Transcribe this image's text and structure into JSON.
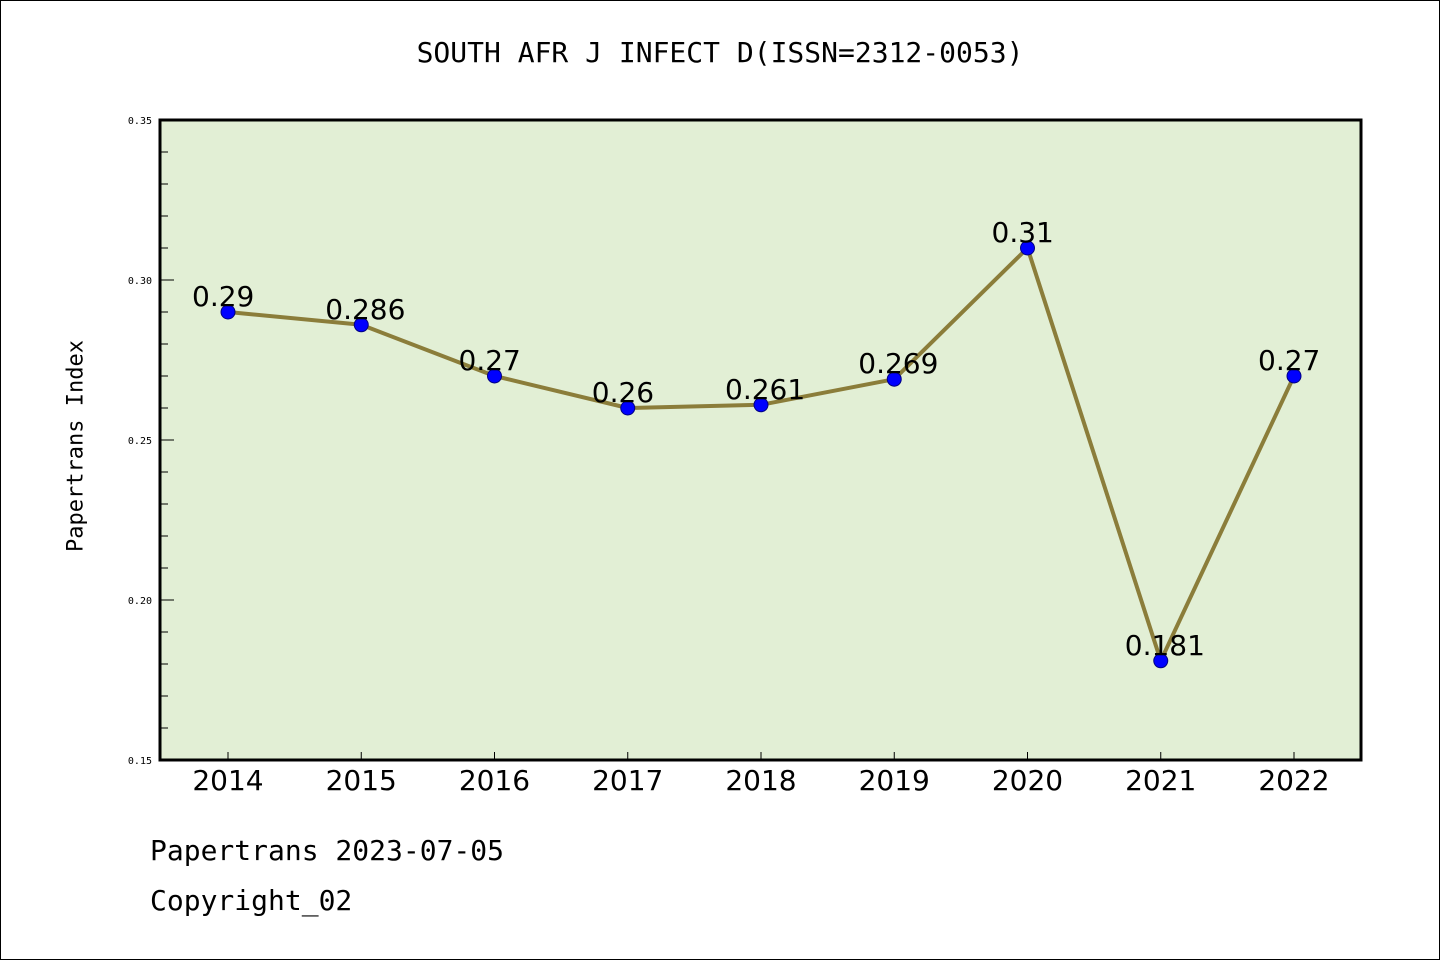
{
  "chart_data": {
    "type": "line",
    "title": "SOUTH AFR J INFECT D(ISSN=2312-0053)",
    "ylabel": "Papertrans Index",
    "xlabel": "",
    "categories": [
      "2014",
      "2015",
      "2016",
      "2017",
      "2018",
      "2019",
      "2020",
      "2021",
      "2022"
    ],
    "series": [
      {
        "values": [
          0.29,
          0.286,
          0.27,
          0.26,
          0.261,
          0.269,
          0.31,
          0.181,
          0.27
        ],
        "labels": [
          "0.29",
          "0.286",
          "0.27",
          "0.26",
          "0.261",
          "0.269",
          "0.31",
          "0.181",
          "0.27"
        ]
      }
    ],
    "ylim": [
      0.15,
      0.35
    ],
    "yticks": [
      0.15,
      0.2,
      0.25,
      0.3,
      0.35
    ],
    "ytick_labels": [
      "0.15",
      "0.20",
      "0.25",
      "0.30",
      "0.35"
    ],
    "legend": "none",
    "grid": false,
    "colors": {
      "plot_background": "#e2efd5",
      "line": "#8b7d3a",
      "marker": "#0000ff",
      "marker_edge": "#000080"
    }
  },
  "footer": {
    "line1": "Papertrans 2023-07-05",
    "line2": "Copyright_02"
  }
}
